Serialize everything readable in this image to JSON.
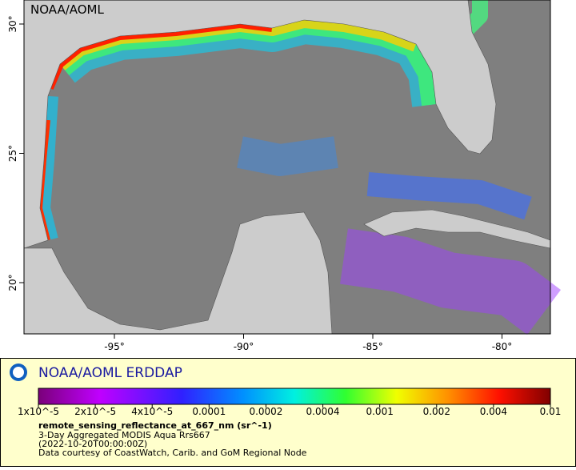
{
  "map": {
    "watermark": "NOAA/AOML",
    "lat_ticks": [
      "30°",
      "25°",
      "20°"
    ],
    "lon_ticks": [
      "-95°",
      "-90°",
      "-85°",
      "-80°"
    ]
  },
  "legend": {
    "title": "NOAA/AOML ERDDAP",
    "colorbar_ticks": [
      "1x10^-5",
      "2x10^-5",
      "4x10^-5",
      "0.0001",
      "0.0002",
      "0.0004",
      "0.001",
      "0.002",
      "0.004",
      "0.01"
    ],
    "variable": "remote_sensing_reflectance_at_667_nm (sr^-1)",
    "dataset": "3-Day Aggregated MODIS Aqua Rrs667",
    "time": "(2022-10-20T00:00:00Z)",
    "credit": "Data courtesy of CoastWatch, Carib. and GoM Regional Node"
  }
}
